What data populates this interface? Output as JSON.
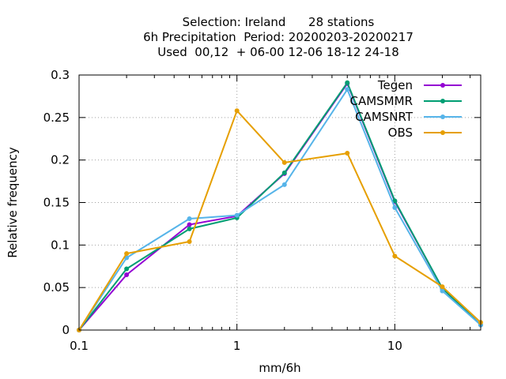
{
  "chart_data": {
    "type": "line",
    "title_lines": [
      "Selection: Ireland      28 stations",
      "6h Precipitation  Period: 20200203-20200217",
      "Used  00,12  + 06-00 12-06 18-12 24-18"
    ],
    "xlabel": "mm/6h",
    "ylabel": "Relative frequency",
    "x_scale": "log",
    "xlim": [
      0.1,
      35
    ],
    "ylim": [
      0,
      0.3
    ],
    "x_ticks": [
      0.1,
      1,
      10
    ],
    "x_tick_labels": [
      "0.1",
      "1",
      "10"
    ],
    "y_ticks": [
      0,
      0.05,
      0.1,
      0.15,
      0.2,
      0.25,
      0.3
    ],
    "y_tick_labels": [
      "0",
      "0.05",
      "0.1",
      "0.15",
      "0.2",
      "0.25",
      "0.3"
    ],
    "grid": true,
    "legend_position": "top-right",
    "x": [
      0.1,
      0.2,
      0.5,
      1,
      2,
      5,
      10,
      20,
      35
    ],
    "series": [
      {
        "name": "Tegen",
        "color": "#9400d3",
        "values": [
          0,
          0.065,
          0.124,
          0.134,
          0.184,
          0.29,
          0.151,
          0.049,
          0.006
        ]
      },
      {
        "name": "CAMSMMR",
        "color": "#009e73",
        "values": [
          0,
          0.072,
          0.119,
          0.132,
          0.185,
          0.291,
          0.152,
          0.049,
          0.006
        ]
      },
      {
        "name": "CAMSNRT",
        "color": "#56b4e9",
        "values": [
          0,
          0.085,
          0.131,
          0.135,
          0.171,
          0.283,
          0.144,
          0.046,
          0.006
        ]
      },
      {
        "name": "OBS",
        "color": "#e69f00",
        "values": [
          0,
          0.09,
          0.104,
          0.258,
          0.197,
          0.208,
          0.087,
          0.051,
          0.009
        ]
      }
    ]
  }
}
